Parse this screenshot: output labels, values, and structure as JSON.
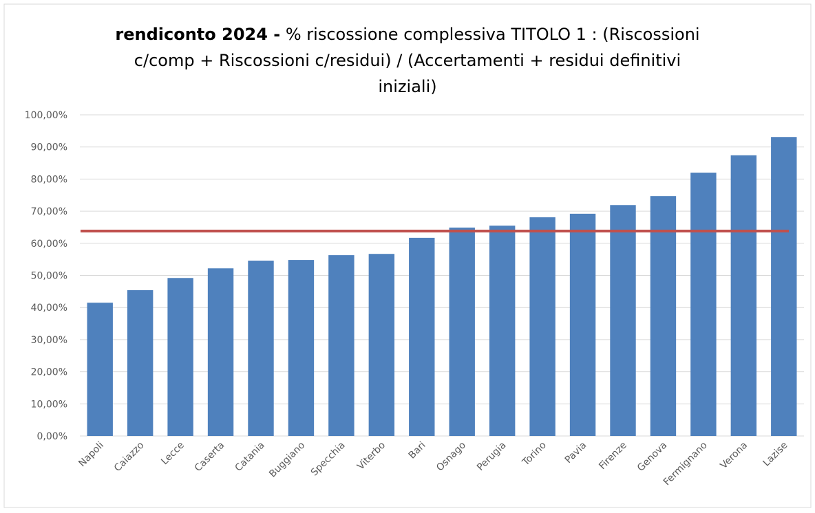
{
  "chart_data": {
    "type": "bar",
    "title_bold": "rendiconto 2024 -",
    "title_lines": [
      "% riscossione complessiva TITOLO 1 : (Riscossioni",
      "c/comp + Riscossioni c/residui) / (Accertamenti + residui definitivi",
      "iniziali)"
    ],
    "categories": [
      "Napoli",
      "Caiazzo",
      "Lecce",
      "Caserta",
      "Catania",
      "Buggiano",
      "Specchia",
      "Viterbo",
      "Bari",
      "Osnago",
      "Perugia",
      "Torino",
      "Pavia",
      "Firenze",
      "Genova",
      "Fermignano",
      "Verona",
      "Lazise"
    ],
    "values": [
      41.5,
      45.4,
      49.2,
      52.2,
      54.6,
      54.8,
      56.3,
      56.7,
      61.7,
      64.9,
      65.5,
      68.1,
      69.2,
      71.9,
      74.7,
      82.0,
      87.4,
      93.1
    ],
    "color": "#4f81bd",
    "reference_line": {
      "value": 63.8,
      "color": "#c0504d"
    },
    "ylim": [
      0,
      100
    ],
    "yticks": [
      {
        "value": 0,
        "label": "0,00%"
      },
      {
        "value": 10,
        "label": "10,00%"
      },
      {
        "value": 20,
        "label": "20,00%"
      },
      {
        "value": 30,
        "label": "30,00%"
      },
      {
        "value": 40,
        "label": "40,00%"
      },
      {
        "value": 50,
        "label": "50,00%"
      },
      {
        "value": 60,
        "label": "60,00%"
      },
      {
        "value": 70,
        "label": "70,00%"
      },
      {
        "value": 80,
        "label": "80,00%"
      },
      {
        "value": 90,
        "label": "90,00%"
      },
      {
        "value": 100,
        "label": "100,00%"
      }
    ],
    "grid": true
  }
}
